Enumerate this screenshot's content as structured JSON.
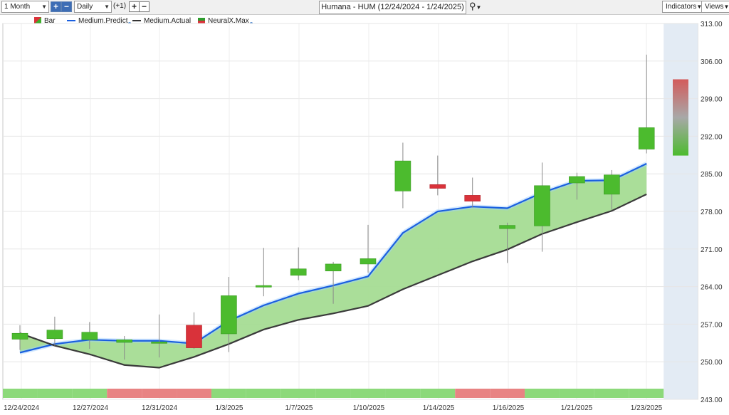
{
  "toolbar": {
    "period": "1 Month",
    "frequency": "Daily",
    "offset": "(+1)",
    "title": "Humana - HUM (12/24/2024 - 1/24/2025)",
    "indicators_label": "Indicators",
    "views_label": "Views",
    "plus_icon": "plus-icon",
    "minus_icon": "minus-icon",
    "search_icon": "search-icon"
  },
  "legend": [
    {
      "label": "Bar",
      "color": "#3cae2b"
    },
    {
      "label": "Medium.Predict",
      "color": "#1a5fe0"
    },
    {
      "label": "Medium.Actual",
      "color": "#333333"
    },
    {
      "label": "NeuralX.Max",
      "color": "#2e9d2e"
    }
  ],
  "colors": {
    "up": "#4cbb2e",
    "down": "#d9323a",
    "predict": "#1a5fe0",
    "actual": "#3a3a3a",
    "band_fill": "#a5dc94",
    "neg_fill": "#f6c9c9",
    "strip_up": "#8cd97a",
    "strip_down": "#e88383",
    "forecast_bg": "#e3ebf4"
  },
  "chart_data": {
    "type": "candlestick",
    "ylim": [
      243,
      313
    ],
    "yticks": [
      "313.00",
      "306.00",
      "299.00",
      "292.00",
      "285.00",
      "278.00",
      "271.00",
      "264.00",
      "257.00",
      "250.00",
      "243.00"
    ],
    "xticks": [
      "12/24/2024",
      "12/27/2024",
      "12/31/2024",
      "1/3/2025",
      "1/7/2025",
      "1/10/2025",
      "1/14/2025",
      "1/16/2025",
      "1/21/2025",
      "1/23/2025"
    ],
    "candles": [
      {
        "open": 254.2,
        "high": 256.8,
        "low": 252.2,
        "close": 255.3
      },
      {
        "open": 254.3,
        "high": 258.4,
        "low": 253.0,
        "close": 255.9
      },
      {
        "open": 254.1,
        "high": 257.4,
        "low": 252.4,
        "close": 255.5
      },
      {
        "open": 253.6,
        "high": 254.8,
        "low": 250.4,
        "close": 254.1
      },
      {
        "open": 253.5,
        "high": 258.8,
        "low": 250.8,
        "close": 253.7
      },
      {
        "open": 256.8,
        "high": 259.2,
        "low": 252.4,
        "close": 252.6
      },
      {
        "open": 255.2,
        "high": 265.8,
        "low": 251.8,
        "close": 262.3
      },
      {
        "open": 263.9,
        "high": 271.2,
        "low": 262.2,
        "close": 264.2
      },
      {
        "open": 266.1,
        "high": 271.3,
        "low": 265.2,
        "close": 267.3
      },
      {
        "open": 266.9,
        "high": 268.6,
        "low": 260.8,
        "close": 268.2
      },
      {
        "open": 268.2,
        "high": 275.5,
        "low": 266.6,
        "close": 269.2
      },
      {
        "open": 281.8,
        "high": 290.8,
        "low": 278.6,
        "close": 287.4
      },
      {
        "open": 283.0,
        "high": 288.4,
        "low": 281.0,
        "close": 282.3
      },
      {
        "open": 281.0,
        "high": 284.3,
        "low": 278.7,
        "close": 279.9
      },
      {
        "open": 274.8,
        "high": 275.9,
        "low": 268.4,
        "close": 275.4
      },
      {
        "open": 275.3,
        "high": 287.1,
        "low": 270.5,
        "close": 282.8
      },
      {
        "open": 283.3,
        "high": 285.2,
        "low": 280.2,
        "close": 284.5
      },
      {
        "open": 281.2,
        "high": 285.7,
        "low": 278.3,
        "close": 284.8
      },
      {
        "open": 289.6,
        "high": 307.2,
        "low": 288.8,
        "close": 293.6
      }
    ],
    "predict": [
      251.7,
      253.3,
      254.1,
      253.9,
      253.9,
      253.4,
      257.6,
      260.5,
      262.7,
      264.2,
      265.9,
      274.0,
      278.0,
      278.9,
      278.6,
      281.5,
      283.7,
      283.8,
      286.9
    ],
    "actual": [
      255.3,
      253.0,
      251.4,
      249.4,
      248.9,
      250.9,
      253.3,
      256.0,
      257.8,
      259.0,
      260.4,
      263.5,
      266.1,
      268.7,
      270.9,
      273.8,
      276.0,
      278.1,
      281.2
    ],
    "signal_strip": [
      "up",
      "up",
      "up",
      "down",
      "down",
      "down",
      "up",
      "up",
      "up",
      "up",
      "up",
      "up",
      "up",
      "down",
      "down",
      "up",
      "up",
      "up",
      "up"
    ],
    "neuralx_max": {
      "top": 302.6,
      "bottom": 288.4
    }
  }
}
